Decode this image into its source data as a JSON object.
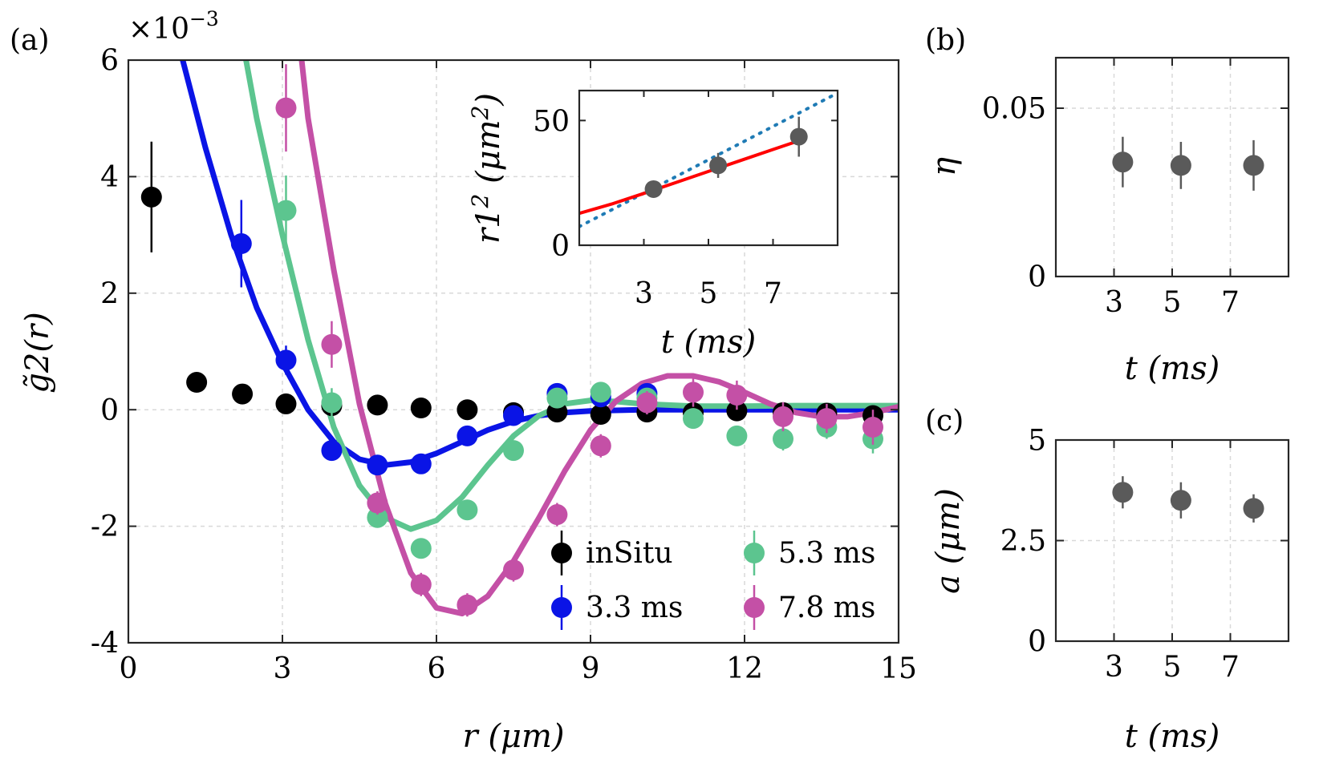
{
  "chart_data": [
    {
      "panel": "(a)",
      "type": "line+errorbar",
      "xlabel": "r (μm)",
      "ylabel": "g̃2(r)",
      "exponent": "×10",
      "exponent_power": "−3",
      "xlim": [
        0,
        15
      ],
      "ylim": [
        -4,
        6
      ],
      "xticks": [
        0,
        3,
        6,
        9,
        12,
        15
      ],
      "yticks": [
        -4,
        -2,
        0,
        2,
        4,
        6
      ],
      "xtick_labels": [
        "0",
        "3",
        "6",
        "9",
        "12",
        "15"
      ],
      "ytick_labels": [
        "-4",
        "-2",
        "0",
        "2",
        "4",
        "6"
      ],
      "grid": true,
      "legend_position": "lower-right",
      "series": [
        {
          "name": "inSitu",
          "color": "#000000",
          "x": [
            0.45,
            1.33,
            2.22,
            3.07,
            3.96,
            4.85,
            5.7,
            6.6,
            7.5,
            8.35,
            9.2,
            10.1,
            11.0,
            11.85,
            12.75,
            13.6,
            14.5
          ],
          "y": [
            3.65,
            0.47,
            0.27,
            0.1,
            0.07,
            0.08,
            0.03,
            0.0,
            -0.05,
            -0.04,
            -0.08,
            -0.04,
            -0.05,
            -0.02,
            -0.05,
            -0.06,
            -0.1
          ],
          "err": [
            0.95,
            0,
            0,
            0,
            0,
            0,
            0,
            0,
            0,
            0,
            0,
            0,
            0,
            0,
            0,
            0,
            0
          ]
        },
        {
          "name": "3.3 ms",
          "color": "#0a14e6",
          "x": [
            2.2,
            3.07,
            3.96,
            4.85,
            5.7,
            6.6,
            7.5,
            8.35,
            9.2,
            10.1
          ],
          "y": [
            2.85,
            0.85,
            -0.7,
            -0.95,
            -0.93,
            -0.45,
            -0.1,
            0.28,
            0.22,
            0.28
          ],
          "err": [
            0.75,
            0.25,
            0.15,
            0.12,
            0.12,
            0.12,
            0.12,
            0.12,
            0.12,
            0.12
          ],
          "fit_x": [
            1.0,
            1.5,
            2.0,
            2.5,
            3.0,
            3.5,
            4.0,
            4.5,
            5.0,
            5.5,
            6.0,
            6.5,
            7.0,
            7.5,
            8.0,
            8.5,
            9.0,
            10.0,
            11.0,
            12.0,
            13.0,
            14.0,
            15.0
          ],
          "fit_y": [
            6.2,
            4.5,
            3.0,
            1.75,
            0.8,
            0.0,
            -0.55,
            -0.85,
            -0.95,
            -0.9,
            -0.75,
            -0.55,
            -0.35,
            -0.2,
            -0.1,
            -0.05,
            -0.02,
            0.0,
            0.0,
            0.0,
            0.0,
            0.0,
            0.0
          ]
        },
        {
          "name": "5.3 ms",
          "color": "#5cc58f",
          "x": [
            3.07,
            3.96,
            4.85,
            5.7,
            6.6,
            7.5,
            8.35,
            9.2,
            10.1,
            11.0,
            11.85,
            12.75,
            13.6,
            14.5
          ],
          "y": [
            3.42,
            0.12,
            -1.85,
            -2.38,
            -1.72,
            -0.7,
            0.2,
            0.3,
            0.2,
            -0.15,
            -0.45,
            -0.5,
            -0.3,
            -0.5
          ],
          "err": [
            0.6,
            0.25,
            0.15,
            0.15,
            0.15,
            0.15,
            0.15,
            0.15,
            0.15,
            0.15,
            0.15,
            0.2,
            0.2,
            0.25
          ],
          "fit_x": [
            2.25,
            2.5,
            3.0,
            3.5,
            4.0,
            4.5,
            5.0,
            5.5,
            6.0,
            6.5,
            7.0,
            7.5,
            8.0,
            8.5,
            9.0,
            9.5,
            10.0,
            11.0,
            12.0,
            13.0,
            14.0,
            15.0
          ],
          "fit_y": [
            6.2,
            5.0,
            3.0,
            1.2,
            -0.3,
            -1.3,
            -1.85,
            -2.05,
            -1.9,
            -1.5,
            -0.95,
            -0.45,
            -0.1,
            0.1,
            0.16,
            0.14,
            0.1,
            0.06,
            0.06,
            0.07,
            0.07,
            0.07
          ]
        },
        {
          "name": "7.8 ms",
          "color": "#c450a6",
          "x": [
            3.07,
            3.96,
            4.85,
            5.7,
            6.6,
            7.5,
            8.35,
            9.2,
            10.1,
            11.0,
            11.85,
            12.75,
            13.6,
            14.5
          ],
          "y": [
            5.18,
            1.12,
            -1.6,
            -3.0,
            -3.35,
            -2.75,
            -1.8,
            -0.62,
            0.12,
            0.3,
            0.25,
            -0.12,
            -0.15,
            -0.3
          ],
          "err": [
            0.75,
            0.4,
            0.2,
            0.2,
            0.2,
            0.2,
            0.2,
            0.2,
            0.2,
            0.25,
            0.25,
            0.25,
            0.25,
            0.3
          ],
          "fit_x": [
            3.35,
            3.5,
            4.0,
            4.5,
            5.0,
            5.5,
            6.0,
            6.5,
            7.0,
            7.5,
            8.0,
            8.5,
            9.0,
            9.5,
            10.0,
            10.5,
            11.0,
            11.5,
            12.0,
            12.5,
            13.0,
            13.5,
            14.0,
            14.5,
            15.0
          ],
          "fit_y": [
            6.2,
            5.0,
            2.4,
            0.1,
            -1.6,
            -2.8,
            -3.4,
            -3.5,
            -3.2,
            -2.6,
            -1.85,
            -1.05,
            -0.35,
            0.15,
            0.45,
            0.58,
            0.58,
            0.48,
            0.3,
            0.1,
            -0.05,
            -0.12,
            -0.12,
            -0.05,
            0.05
          ]
        }
      ]
    },
    {
      "panel": "(a) inset",
      "type": "line+errorbar",
      "xlabel": "t (ms)",
      "ylabel_main": "r1",
      "ylabel_sub": "1",
      "ylabel_power": "2",
      "ylabel_unit": "(μm",
      "ylabel_unit_power": "2",
      "ylabel_close": ")",
      "xlim": [
        1,
        9
      ],
      "ylim": [
        0,
        62
      ],
      "xtick_labels": [
        "3",
        "5",
        "7"
      ],
      "ytick_labels": [
        "0",
        "50"
      ],
      "points": {
        "x": [
          3.3,
          5.3,
          7.8
        ],
        "y": [
          22.5,
          32,
          43.5
        ],
        "err": [
          3,
          5,
          8
        ],
        "color": "#5a5a5a"
      },
      "fit_solid": {
        "x": [
          1,
          2,
          3,
          4,
          5,
          6,
          7,
          7.8
        ],
        "y": [
          12.8,
          16.5,
          20.8,
          25.2,
          29.6,
          34.0,
          38.4,
          41.9
        ],
        "color": "#ff0000"
      },
      "fit_dotted": {
        "x": [
          1,
          9
        ],
        "y": [
          7.5,
          61
        ],
        "color": "#1f7bb5"
      }
    },
    {
      "panel": "(b)",
      "type": "errorbar",
      "xlabel": "t (ms)",
      "ylabel": "η",
      "xlim": [
        1,
        9
      ],
      "ylim": [
        0,
        0.065
      ],
      "xtick_labels": [
        "3",
        "5",
        "7"
      ],
      "ytick_labels": [
        "0",
        "0.05"
      ],
      "x": [
        3.3,
        5.3,
        7.8
      ],
      "y": [
        0.034,
        0.033,
        0.033
      ],
      "err": [
        0.0075,
        0.007,
        0.0075
      ],
      "color": "#5a5a5a"
    },
    {
      "panel": "(c)",
      "type": "errorbar",
      "xlabel": "t (ms)",
      "ylabel": "a (μm)",
      "xlim": [
        1,
        9
      ],
      "ylim": [
        0,
        5
      ],
      "xtick_labels": [
        "3",
        "5",
        "7"
      ],
      "ytick_labels": [
        "0",
        "2.5",
        "5"
      ],
      "x": [
        3.3,
        5.3,
        7.8
      ],
      "y": [
        3.7,
        3.5,
        3.3
      ],
      "err": [
        0.4,
        0.45,
        0.35
      ],
      "color": "#5a5a5a"
    }
  ]
}
